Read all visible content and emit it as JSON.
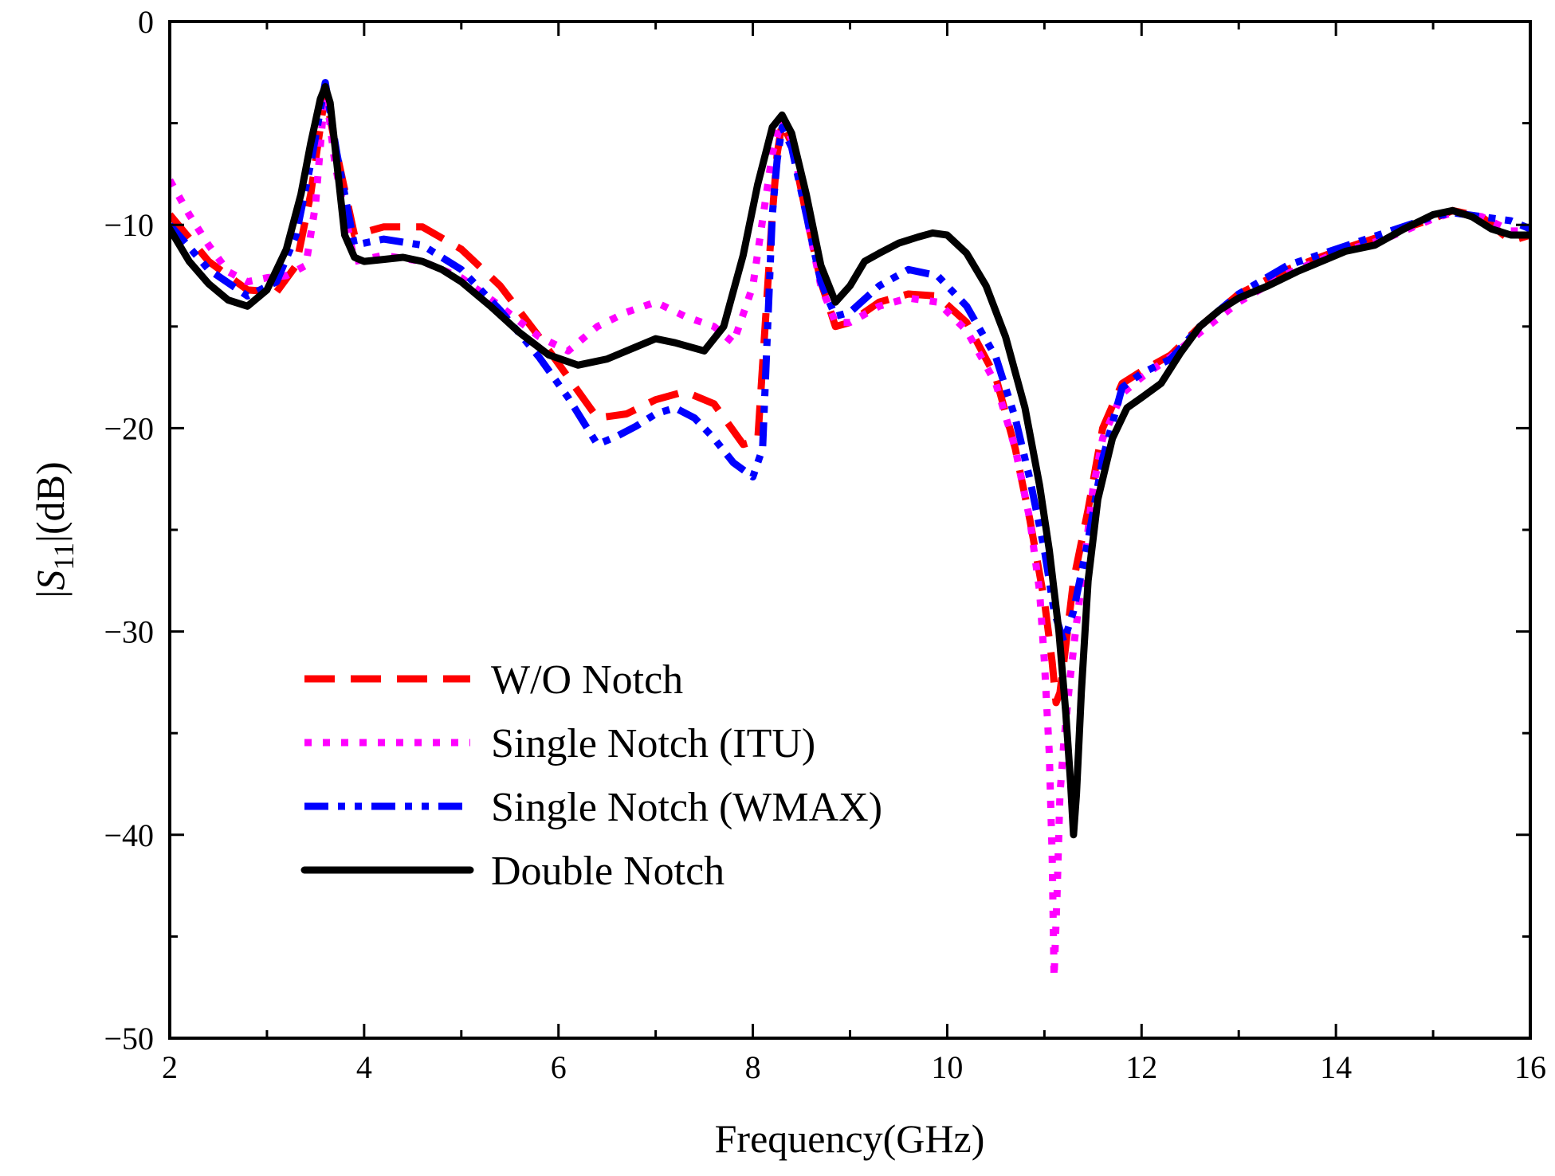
{
  "chart_data": {
    "type": "line",
    "title": "",
    "xlabel": "Frequency(GHz)",
    "ylabel_parts": {
      "open": "|",
      "var": "S",
      "sub": "11",
      "close": "|(dB)"
    },
    "xlim": [
      2,
      16
    ],
    "ylim": [
      -50,
      0
    ],
    "xticks": [
      2,
      4,
      6,
      8,
      10,
      12,
      14,
      16
    ],
    "yticks": [
      0,
      -10,
      -20,
      -30,
      -40,
      -50
    ],
    "xtick_labels": [
      "2",
      "4",
      "6",
      "8",
      "10",
      "12",
      "14",
      "16"
    ],
    "ytick_labels": [
      "0",
      "−10",
      "−20",
      "−30",
      "−40",
      "−50"
    ],
    "grid": false,
    "legend_position": "lower-left",
    "series": [
      {
        "name": "W/O Notch",
        "color": "#ff0000",
        "style": "dashed",
        "x": [
          2.0,
          2.4,
          2.8,
          3.1,
          3.3,
          3.45,
          3.6,
          3.72,
          3.9,
          4.2,
          4.6,
          5.0,
          5.4,
          5.8,
          6.1,
          6.4,
          6.7,
          7.0,
          7.3,
          7.6,
          7.9,
          8.05,
          8.2,
          8.25,
          8.3,
          8.4,
          8.55,
          8.7,
          8.85,
          9.0,
          9.3,
          9.6,
          9.9,
          10.2,
          10.5,
          10.7,
          10.85,
          11.0,
          11.08,
          11.12,
          11.16,
          11.2,
          11.3,
          11.45,
          11.6,
          11.8,
          12.0,
          12.3,
          12.6,
          13.0,
          13.5,
          14.0,
          14.5,
          15.0,
          15.2,
          15.5,
          15.8,
          16.0
        ],
        "y": [
          -9.5,
          -11.8,
          -13.2,
          -13.3,
          -12.0,
          -8.5,
          -3.5,
          -6.5,
          -10.5,
          -10.1,
          -10.1,
          -11.2,
          -13.0,
          -15.5,
          -17.5,
          -19.5,
          -19.3,
          -18.6,
          -18.2,
          -18.8,
          -20.8,
          -20.6,
          -9.5,
          -6.5,
          -5.0,
          -6.0,
          -9.5,
          -12.8,
          -15.0,
          -14.8,
          -13.8,
          -13.4,
          -13.5,
          -14.8,
          -17.5,
          -21.0,
          -24.5,
          -28.5,
          -31.5,
          -33.5,
          -33.0,
          -31.5,
          -27.5,
          -24.0,
          -20.0,
          -17.8,
          -17.2,
          -16.4,
          -15.0,
          -13.4,
          -12.2,
          -11.3,
          -10.5,
          -9.7,
          -9.3,
          -9.6,
          -10.8,
          -10.5
        ]
      },
      {
        "name": "Single Notch (ITU)",
        "color": "#ff00ff",
        "style": "dotted",
        "x": [
          2.0,
          2.2,
          2.4,
          2.6,
          2.8,
          3.0,
          3.2,
          3.4,
          3.5,
          3.6,
          3.7,
          3.9,
          4.2,
          4.6,
          5.0,
          5.4,
          5.8,
          6.1,
          6.4,
          6.7,
          7.0,
          7.3,
          7.6,
          7.8,
          8.0,
          8.2,
          8.3,
          8.4,
          8.55,
          8.7,
          8.85,
          9.0,
          9.3,
          9.6,
          9.9,
          10.2,
          10.5,
          10.7,
          10.85,
          10.95,
          11.0,
          11.05,
          11.08,
          11.1,
          11.13,
          11.16,
          11.2,
          11.26,
          11.32,
          11.4,
          11.5,
          11.6,
          11.8,
          12.0,
          12.3,
          12.6,
          13.0,
          13.5,
          14.0,
          14.5,
          15.0,
          15.2,
          15.5,
          15.8,
          16.0
        ],
        "y": [
          -7.8,
          -9.5,
          -11.0,
          -12.3,
          -12.8,
          -12.6,
          -12.5,
          -12.0,
          -9.0,
          -3.2,
          -7.0,
          -11.8,
          -11.5,
          -11.8,
          -12.6,
          -14.0,
          -15.5,
          -16.2,
          -15.0,
          -14.3,
          -13.8,
          -14.5,
          -15.0,
          -15.8,
          -13.0,
          -6.5,
          -4.8,
          -5.8,
          -9.5,
          -13.0,
          -14.8,
          -14.8,
          -14.0,
          -13.6,
          -13.8,
          -15.2,
          -17.8,
          -21.0,
          -24.5,
          -28.0,
          -31.5,
          -36.0,
          -41.0,
          -47.0,
          -43.0,
          -38.0,
          -35.5,
          -32.5,
          -30.0,
          -27.0,
          -23.0,
          -20.5,
          -18.3,
          -17.5,
          -16.5,
          -15.3,
          -13.8,
          -12.4,
          -11.4,
          -10.7,
          -9.7,
          -9.4,
          -9.6,
          -10.3,
          -10.3
        ]
      },
      {
        "name": "Single Notch (WMAX)",
        "color": "#0000ff",
        "style": "dashdot",
        "x": [
          2.0,
          2.4,
          2.8,
          3.1,
          3.3,
          3.45,
          3.6,
          3.72,
          3.9,
          4.2,
          4.6,
          5.0,
          5.4,
          5.8,
          6.1,
          6.4,
          6.6,
          6.8,
          7.0,
          7.2,
          7.4,
          7.6,
          7.8,
          8.0,
          8.1,
          8.2,
          8.25,
          8.3,
          8.4,
          8.55,
          8.7,
          8.85,
          9.0,
          9.3,
          9.6,
          9.9,
          10.2,
          10.5,
          10.7,
          10.85,
          11.0,
          11.1,
          11.2,
          11.3,
          11.45,
          11.6,
          11.8,
          12.0,
          12.3,
          12.6,
          13.0,
          13.5,
          14.0,
          14.5,
          15.0,
          15.2,
          15.5,
          15.8,
          16.0
        ],
        "y": [
          -10.0,
          -12.2,
          -13.5,
          -12.8,
          -10.5,
          -7.0,
          -3.0,
          -6.5,
          -11.0,
          -10.7,
          -11.0,
          -12.2,
          -14.2,
          -16.5,
          -18.5,
          -20.8,
          -20.4,
          -19.9,
          -19.3,
          -19.0,
          -19.5,
          -20.5,
          -21.7,
          -22.4,
          -21.0,
          -9.5,
          -6.8,
          -5.2,
          -6.2,
          -9.5,
          -12.8,
          -14.5,
          -14.3,
          -13.0,
          -12.2,
          -12.5,
          -14.0,
          -16.5,
          -19.5,
          -22.5,
          -26.0,
          -29.0,
          -30.5,
          -29.0,
          -25.5,
          -21.5,
          -18.0,
          -17.3,
          -16.6,
          -15.0,
          -13.4,
          -12.0,
          -11.2,
          -10.4,
          -9.6,
          -9.4,
          -9.6,
          -9.8,
          -10.2
        ]
      },
      {
        "name": "Double Notch",
        "color": "#000000",
        "style": "solid",
        "x": [
          2.0,
          2.2,
          2.4,
          2.6,
          2.8,
          3.0,
          3.2,
          3.35,
          3.45,
          3.55,
          3.6,
          3.65,
          3.72,
          3.8,
          3.9,
          4.0,
          4.2,
          4.4,
          4.6,
          4.8,
          5.0,
          5.3,
          5.6,
          5.9,
          6.2,
          6.5,
          6.8,
          7.0,
          7.2,
          7.5,
          7.7,
          7.9,
          8.05,
          8.2,
          8.3,
          8.4,
          8.55,
          8.7,
          8.85,
          9.0,
          9.15,
          9.3,
          9.5,
          9.7,
          9.85,
          10.0,
          10.2,
          10.4,
          10.6,
          10.8,
          10.95,
          11.05,
          11.15,
          11.22,
          11.27,
          11.3,
          11.33,
          11.38,
          11.45,
          11.55,
          11.7,
          11.85,
          12.0,
          12.2,
          12.4,
          12.6,
          12.8,
          13.0,
          13.3,
          13.6,
          13.9,
          14.1,
          14.4,
          14.7,
          15.0,
          15.2,
          15.4,
          15.6,
          15.8,
          16.0
        ],
        "y": [
          -10.2,
          -11.8,
          -12.9,
          -13.7,
          -14.0,
          -13.2,
          -11.2,
          -8.5,
          -6.0,
          -3.8,
          -3.2,
          -4.0,
          -7.0,
          -10.5,
          -11.6,
          -11.8,
          -11.7,
          -11.6,
          -11.8,
          -12.2,
          -12.8,
          -14.0,
          -15.3,
          -16.4,
          -16.9,
          -16.6,
          -16.0,
          -15.6,
          -15.8,
          -16.2,
          -15.0,
          -11.5,
          -8.0,
          -5.2,
          -4.6,
          -5.5,
          -8.5,
          -12.0,
          -13.8,
          -13.0,
          -11.8,
          -11.4,
          -10.9,
          -10.6,
          -10.4,
          -10.5,
          -11.4,
          -13.0,
          -15.5,
          -19.0,
          -22.8,
          -26.0,
          -30.0,
          -34.0,
          -37.5,
          -40.0,
          -38.0,
          -33.0,
          -27.5,
          -23.5,
          -20.5,
          -19.0,
          -18.5,
          -17.8,
          -16.3,
          -15.0,
          -14.2,
          -13.6,
          -13.0,
          -12.3,
          -11.7,
          -11.3,
          -11.0,
          -10.2,
          -9.5,
          -9.3,
          -9.6,
          -10.2,
          -10.5,
          -10.5
        ]
      }
    ]
  }
}
